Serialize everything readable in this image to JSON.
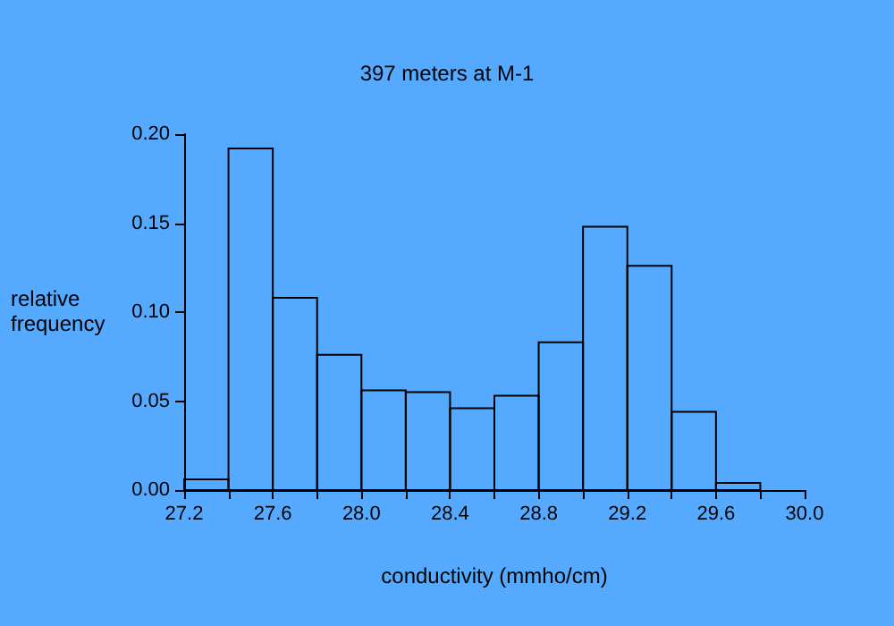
{
  "chart_data": {
    "type": "histogram",
    "title": "397 meters at M-1",
    "xlabel": "conductivity (mmho/cm)",
    "ylabel": "relative frequency",
    "bins": [
      27.2,
      27.4,
      27.6,
      27.8,
      28.0,
      28.2,
      28.4,
      28.6,
      28.8,
      29.0,
      29.2,
      29.4,
      29.6,
      29.8
    ],
    "values": [
      0.006,
      0.192,
      0.108,
      0.076,
      0.056,
      0.055,
      0.046,
      0.053,
      0.083,
      0.148,
      0.126,
      0.044,
      0.004
    ],
    "color": "#000000",
    "xlim": [
      27.2,
      30.0
    ],
    "xticks": [
      27.2,
      {
        "value": 27.4,
        "label": null
      },
      27.6,
      {
        "value": 27.8,
        "label": null
      },
      {
        "value": 28.0,
        "label": "28.0"
      },
      {
        "value": 28.2,
        "label": null
      },
      28.4,
      {
        "value": 28.6,
        "label": null
      },
      28.8,
      {
        "value": 29.0,
        "label": null
      },
      29.2,
      {
        "value": 29.4,
        "label": null
      },
      29.6,
      {
        "value": 29.8,
        "label": null
      },
      {
        "value": 30.0,
        "label": "30.0"
      }
    ],
    "ylim": [
      0,
      0.2
    ],
    "yticks": [
      {
        "value": 0,
        "label": "0.00"
      },
      {
        "value": 0.05,
        "label": "0.05"
      },
      {
        "value": 0.1,
        "label": "0.10"
      },
      {
        "value": 0.15,
        "label": "0.15"
      },
      {
        "value": 0.2,
        "label": "0.20"
      }
    ],
    "grid": false
  }
}
